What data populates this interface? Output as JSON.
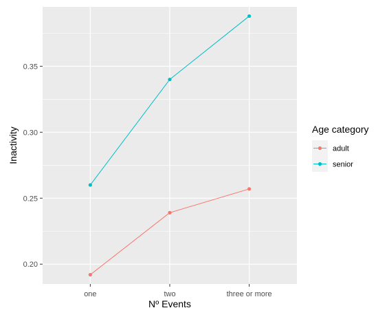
{
  "chart_data": {
    "type": "line",
    "categories": [
      "one",
      "two",
      "three or more"
    ],
    "series": [
      {
        "name": "adult",
        "values": [
          0.192,
          0.239,
          0.257
        ],
        "color": "#F8766D"
      },
      {
        "name": "senior",
        "values": [
          0.26,
          0.34,
          0.388
        ],
        "color": "#00BFC4"
      }
    ],
    "xlabel": "Nº Events",
    "ylabel": "Inactivity",
    "ylim": [
      0.185,
      0.395
    ],
    "yticks": [
      0.2,
      0.25,
      0.3,
      0.35
    ],
    "ytick_labels": [
      "0.20",
      "0.25",
      "0.30",
      "0.35"
    ],
    "legend": {
      "title": "Age category",
      "position": "right"
    },
    "grid": true,
    "panel_background": "#EBEBEB"
  }
}
